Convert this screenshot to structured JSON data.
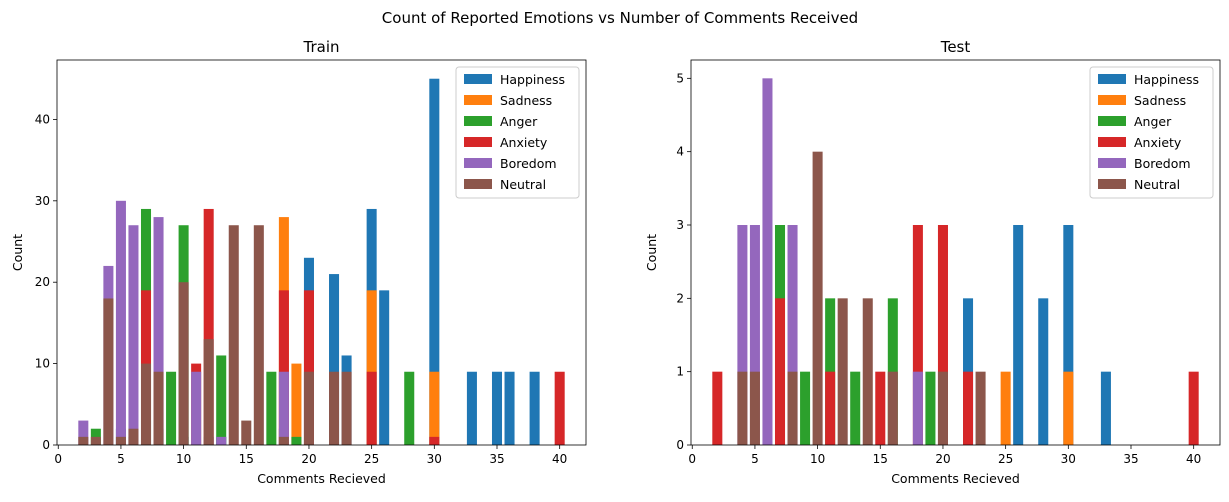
{
  "figure": {
    "suptitle": "Count of Reported Emotions vs Number of Comments Received"
  },
  "colors": {
    "Happiness": "#1f77b4",
    "Sadness": "#ff7f0e",
    "Anger": "#2ca02c",
    "Anxiety": "#d62728",
    "Boredom": "#9467bd",
    "Neutral": "#8c564b"
  },
  "chart_data": [
    {
      "type": "bar",
      "title": "Train",
      "xlabel": "Comments Recieved",
      "ylabel": "Count",
      "xlim": [
        -0.1,
        42.1
      ],
      "ylim": [
        0,
        47.3
      ],
      "xticks": [
        0,
        5,
        10,
        15,
        20,
        25,
        30,
        35,
        40
      ],
      "yticks": [
        0,
        10,
        20,
        30,
        40
      ],
      "legend_position": "top-right",
      "legend": [
        "Happiness",
        "Sadness",
        "Anger",
        "Anxiety",
        "Boredom",
        "Neutral"
      ],
      "series": [
        {
          "name": "Happiness",
          "x": [
            5,
            6,
            7,
            8,
            10,
            12,
            13,
            18,
            20,
            22,
            23,
            25,
            26,
            30,
            33,
            35,
            36,
            38
          ],
          "values": [
            2,
            1,
            3,
            2,
            1,
            1,
            1,
            2,
            23,
            21,
            11,
            29,
            19,
            45,
            9,
            9,
            9,
            9
          ]
        },
        {
          "name": "Sadness",
          "x": [
            18,
            19,
            25,
            30
          ],
          "values": [
            28,
            10,
            19,
            9
          ]
        },
        {
          "name": "Anger",
          "x": [
            3,
            7,
            9,
            10,
            13,
            17,
            19,
            28
          ],
          "values": [
            2,
            29,
            9,
            27,
            11,
            9,
            1,
            9
          ]
        },
        {
          "name": "Anxiety",
          "x": [
            7,
            11,
            12,
            18,
            20,
            25,
            30,
            40
          ],
          "values": [
            19,
            10,
            29,
            19,
            19,
            9,
            1,
            9
          ]
        },
        {
          "name": "Boredom",
          "x": [
            2,
            4,
            5,
            6,
            8,
            11,
            13,
            18
          ],
          "values": [
            3,
            22,
            30,
            27,
            28,
            9,
            1,
            9
          ]
        },
        {
          "name": "Neutral",
          "x": [
            2,
            3,
            4,
            5,
            6,
            7,
            8,
            10,
            12,
            14,
            15,
            16,
            18,
            20,
            22,
            23
          ],
          "values": [
            1,
            1,
            18,
            1,
            2,
            10,
            9,
            20,
            13,
            27,
            3,
            27,
            1,
            9,
            9,
            9
          ]
        }
      ]
    },
    {
      "type": "bar",
      "title": "Test",
      "xlabel": "Comments Recieved",
      "ylabel": "Count",
      "xlim": [
        -0.1,
        42.1
      ],
      "ylim": [
        0,
        5.25
      ],
      "xticks": [
        0,
        5,
        10,
        15,
        20,
        25,
        30,
        35,
        40
      ],
      "yticks": [
        0,
        1,
        2,
        3,
        4,
        5
      ],
      "legend_position": "top-right",
      "legend": [
        "Happiness",
        "Sadness",
        "Anger",
        "Anxiety",
        "Boredom",
        "Neutral"
      ],
      "series": [
        {
          "name": "Happiness",
          "x": [
            22,
            26,
            28,
            30,
            33
          ],
          "values": [
            2,
            3,
            2,
            3,
            1
          ]
        },
        {
          "name": "Sadness",
          "x": [
            25,
            30
          ],
          "values": [
            1,
            1
          ]
        },
        {
          "name": "Anger",
          "x": [
            7,
            9,
            11,
            13,
            16,
            19
          ],
          "values": [
            3,
            1,
            2,
            1,
            2,
            1
          ]
        },
        {
          "name": "Anxiety",
          "x": [
            2,
            7,
            11,
            15,
            18,
            20,
            22,
            40
          ],
          "values": [
            1,
            2,
            1,
            1,
            3,
            3,
            1,
            1
          ]
        },
        {
          "name": "Boredom",
          "x": [
            4,
            5,
            6,
            8,
            18
          ],
          "values": [
            3,
            3,
            5,
            3,
            1
          ]
        },
        {
          "name": "Neutral",
          "x": [
            4,
            5,
            8,
            10,
            12,
            14,
            16,
            20,
            23
          ],
          "values": [
            1,
            1,
            1,
            4,
            2,
            2,
            1,
            1,
            1
          ]
        }
      ]
    }
  ]
}
